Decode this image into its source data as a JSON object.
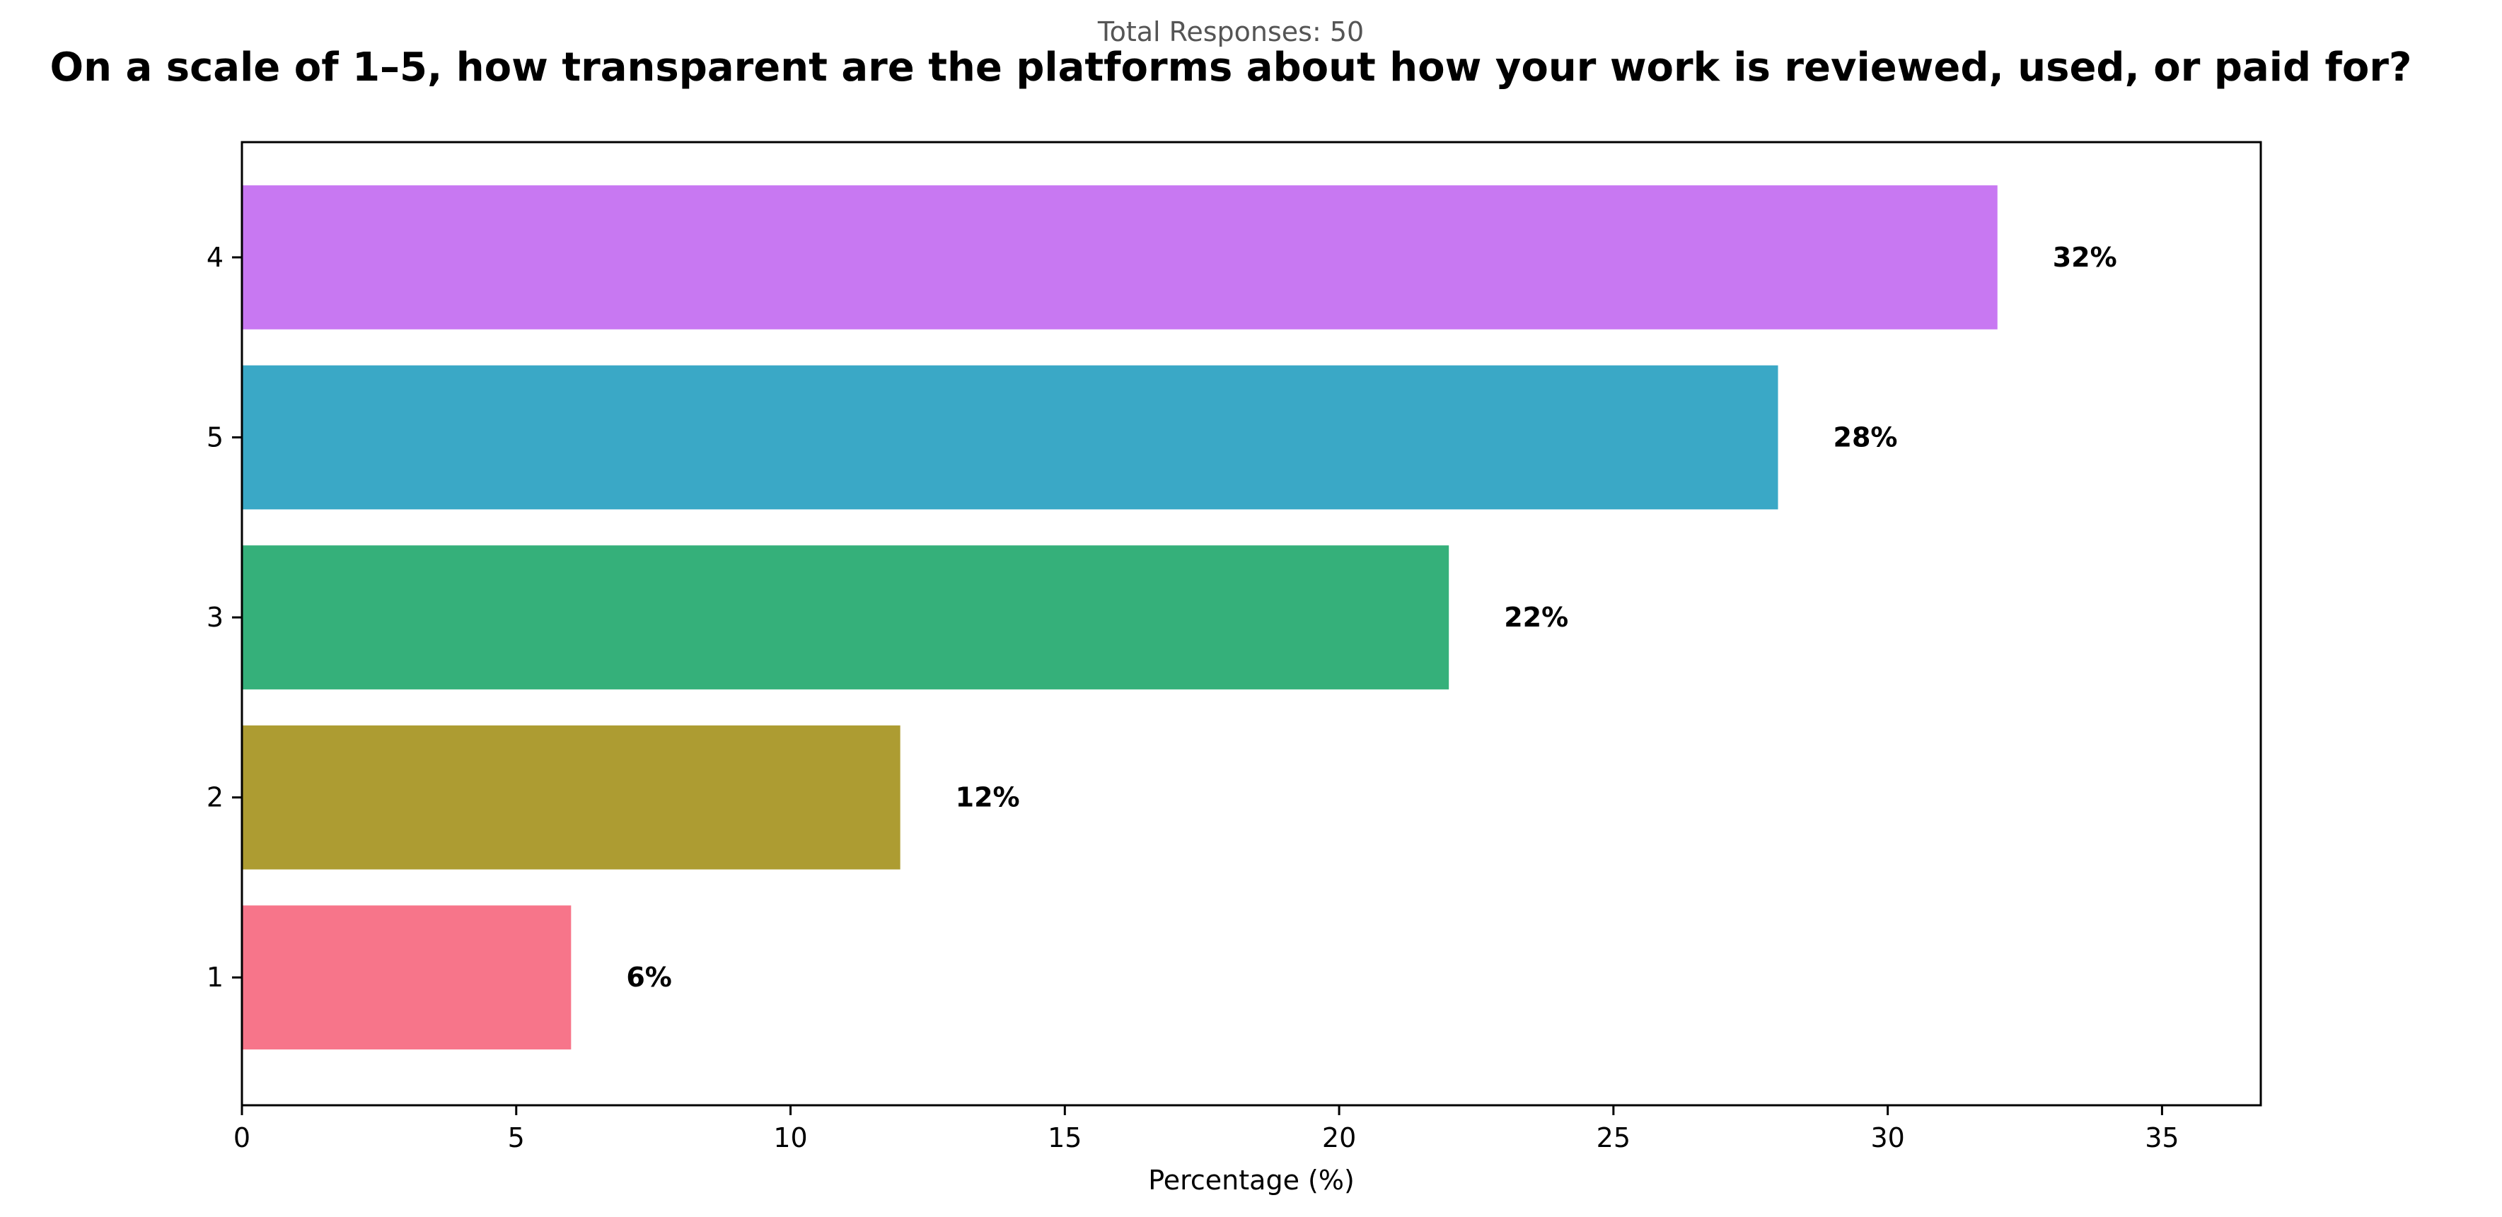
{
  "chart_data": {
    "type": "bar",
    "orientation": "horizontal",
    "subtitle": "Total Responses: 50",
    "title": "On a scale of 1–5, how transparent are the platforms about how your work is reviewed, used, or paid for?",
    "xlabel": "Percentage (%)",
    "ylabel": "",
    "categories": [
      "4",
      "5",
      "3",
      "2",
      "1"
    ],
    "values": [
      32,
      28,
      22,
      12,
      6
    ],
    "value_labels": [
      "32%",
      "28%",
      "22%",
      "12%",
      "6%"
    ],
    "colors": [
      "#c878f2",
      "#3aa8c6",
      "#35b07a",
      "#ad9c32",
      "#f7758a"
    ],
    "xlim": [
      0,
      36.8
    ],
    "xticks": [
      "0",
      "5",
      "10",
      "15",
      "20",
      "25",
      "30",
      "35"
    ],
    "grid": false,
    "legend": "none"
  }
}
